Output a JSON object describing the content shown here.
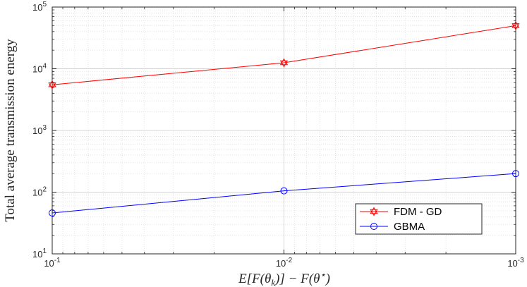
{
  "chart_data": {
    "type": "line",
    "xscale": "log",
    "yscale": "log",
    "x_reversed": true,
    "xlim": [
      0.1,
      0.001
    ],
    "ylim": [
      10,
      100000
    ],
    "grid": true,
    "minor_grid": true,
    "xlabel": "E[F(θ_k)] − F(θ*)",
    "ylabel": "Total average transmission energy",
    "x": [
      0.1,
      0.01,
      0.001
    ],
    "x_ticks": [
      {
        "base": "10",
        "exp": "-1"
      },
      {
        "base": "10",
        "exp": "-2"
      },
      {
        "base": "10",
        "exp": "-3"
      }
    ],
    "y_ticks": [
      {
        "base": "10",
        "exp": "1"
      },
      {
        "base": "10",
        "exp": "2"
      },
      {
        "base": "10",
        "exp": "3"
      },
      {
        "base": "10",
        "exp": "4"
      },
      {
        "base": "10",
        "exp": "5"
      }
    ],
    "legend_position": "bottom-right",
    "series": [
      {
        "name": "FDM - GD",
        "values": [
          5500,
          12500,
          50000
        ],
        "color": "#ff0000",
        "marker": "hexagram"
      },
      {
        "name": "GBMA",
        "values": [
          46,
          105,
          200
        ],
        "color": "#0000ff",
        "marker": "circle"
      }
    ]
  }
}
